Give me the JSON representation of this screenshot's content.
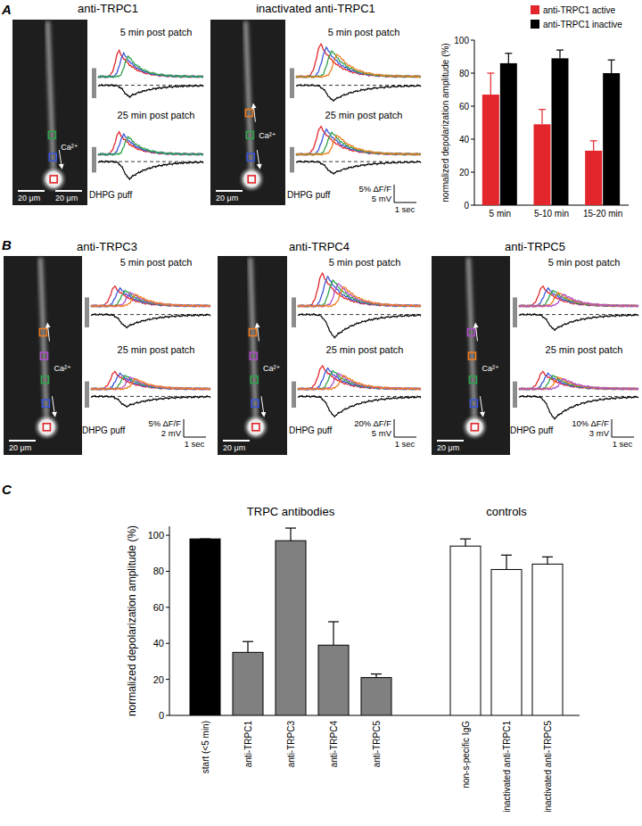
{
  "figure_labels": [
    "A",
    "B",
    "C"
  ],
  "image_panels": [
    {
      "title": "anti-TRPC1",
      "rows": [
        "5 min post patch",
        "25 min post patch"
      ],
      "puff": "DHPG puff",
      "ca": "Ca²⁺",
      "scale_bars": [
        "20 μm",
        "20 μm"
      ],
      "roi_colors": [
        "#e3262b",
        "#3b55d9",
        "#2fa34a"
      ]
    },
    {
      "title": "inactivated anti-TRPC1",
      "rows": [
        "5 min post patch",
        "25 min post patch"
      ],
      "puff": "DHPG puff",
      "ca": "Ca²⁺",
      "scale_bars": [
        "20 μm"
      ],
      "calibration": [
        "5% ΔF/F",
        "5 mV",
        "1 sec"
      ],
      "roi_colors": [
        "#e3262b",
        "#3b55d9",
        "#2fa34a",
        "#f07d1f"
      ]
    },
    {
      "title": "anti-TRPC3",
      "rows": [
        "5 min post patch",
        "25 min post patch"
      ],
      "puff": "DHPG puff",
      "ca": "Ca²⁺",
      "scale_bars": [
        "20 μm"
      ],
      "calibration": [
        "5% ΔF/F",
        "2 mV",
        "1 sec"
      ],
      "roi_colors": [
        "#e3262b",
        "#3b55d9",
        "#2fa34a",
        "#b04ec9",
        "#f07d1f"
      ]
    },
    {
      "title": "anti-TRPC4",
      "rows": [
        "5 min post patch",
        "25 min post patch"
      ],
      "puff": "DHPG puff",
      "ca": "Ca²⁺",
      "scale_bars": [
        "20 μm"
      ],
      "calibration": [
        "20% ΔF/F",
        "5 mV",
        "1 sec"
      ],
      "roi_colors": [
        "#e3262b",
        "#3b55d9",
        "#2fa34a",
        "#b04ec9",
        "#f07d1f"
      ]
    },
    {
      "title": "anti-TRPC5",
      "rows": [
        "5 min post patch",
        "25 min post patch"
      ],
      "puff": "DHPG puff",
      "ca": "Ca²⁺",
      "scale_bars": [
        "20 μm"
      ],
      "calibration": [
        "10% ΔF/F",
        "3 mV",
        "1 sec"
      ],
      "roi_colors": [
        "#e3262b",
        "#3b55d9",
        "#2fa34a",
        "#f07d1f",
        "#b04ec9"
      ]
    }
  ],
  "chart_data": [
    {
      "type": "bar",
      "ylabel": "normalized depolarization amplitude (%)",
      "categories": [
        "5 min",
        "5-10 min",
        "15-20 min"
      ],
      "series": [
        {
          "name": "anti-TRPC1 active",
          "color": "#e3262b",
          "values": [
            67,
            49,
            33
          ],
          "errors": [
            13,
            9,
            6
          ]
        },
        {
          "name": "anti-TRPC1 inactive",
          "color": "#000000",
          "values": [
            86,
            89,
            80
          ],
          "errors": [
            6,
            5,
            8
          ]
        }
      ],
      "ylim": [
        0,
        100
      ],
      "yticks": [
        0,
        20,
        40,
        60,
        80,
        100
      ],
      "legend": "top-right",
      "grid": false
    },
    {
      "type": "bar",
      "ylabel": "normalized depolarization amplitude (%)",
      "categories": [
        "start (<5 min)",
        "anti-TRPC1",
        "anti-TRPC3",
        "anti-TRPC4",
        "anti-TRPC5",
        "non-s-pecific IgG",
        "inactivated anti-TRPC1",
        "inactivated anti-TRPC5"
      ],
      "values": [
        98,
        35,
        97,
        39,
        21,
        94,
        81,
        84
      ],
      "errors": [
        0,
        6,
        7,
        13,
        2,
        4,
        8,
        4
      ],
      "colors": [
        "#000000",
        "#808080",
        "#808080",
        "#808080",
        "#808080",
        "#ffffff",
        "#ffffff",
        "#ffffff"
      ],
      "ylim": [
        0,
        105
      ],
      "yticks": [
        0,
        20,
        40,
        60,
        80,
        100
      ],
      "annotations": [
        {
          "text": "TRPC antibodies"
        },
        {
          "text": "controls"
        }
      ],
      "grid": false
    }
  ]
}
